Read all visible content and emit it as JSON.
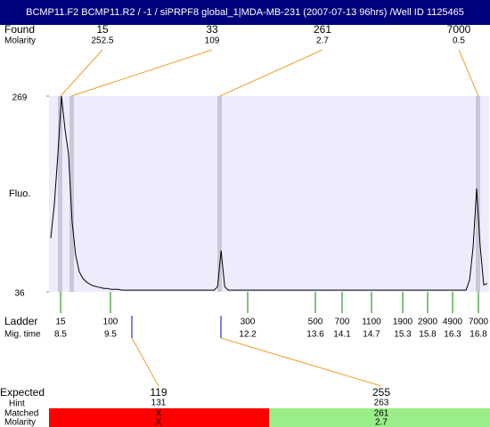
{
  "header": {
    "title": "BCMP11.F2  BCMP11.R2 / -1  / siPRPF8 global_1|MDA-MB-231 (2007-07-13 96hrs) /Well ID 1125465"
  },
  "found": {
    "label": "Found",
    "molarity_label": "Molarity",
    "peaks": [
      {
        "size": 15,
        "molarity": 252.5
      },
      {
        "size": 33,
        "molarity": 109
      },
      {
        "size": 261,
        "molarity": 2.7
      },
      {
        "size": 7000,
        "molarity": 0.5
      }
    ]
  },
  "plot": {
    "y_label": "Fluo.",
    "ylim": [
      36,
      269
    ],
    "yticks": [
      36,
      269
    ],
    "trace": [
      100,
      140,
      200,
      269,
      230,
      200,
      120,
      80,
      60,
      52,
      48,
      45,
      43,
      42,
      41,
      40,
      40,
      39,
      39,
      39,
      38,
      38,
      38,
      38,
      38,
      38,
      38,
      38,
      38,
      38,
      38,
      38,
      38,
      38,
      38,
      38,
      38,
      38,
      38,
      38,
      38,
      38,
      38,
      38,
      38,
      38,
      38,
      42,
      85,
      42,
      38,
      38,
      38,
      38,
      38,
      38,
      38,
      38,
      38,
      38,
      38,
      38,
      38,
      38,
      38,
      38,
      38,
      38,
      38,
      38,
      38,
      38,
      38,
      38,
      38,
      38,
      38,
      38,
      38,
      38,
      38,
      38,
      38,
      38,
      38,
      38,
      38,
      38,
      38,
      38,
      38,
      38,
      38,
      38,
      38,
      38,
      38,
      38,
      38,
      38,
      38,
      38,
      38,
      38,
      38,
      38,
      38,
      38,
      38,
      38,
      38,
      38,
      38,
      38,
      38,
      38,
      38,
      38,
      50,
      90,
      159,
      90,
      44,
      46
    ]
  },
  "ladder": {
    "label": "Ladder",
    "time_label": "Mig. time",
    "sizes": [
      15,
      100,
      300,
      500,
      700,
      1100,
      1900,
      2900,
      4900,
      7000
    ],
    "times": [
      8.5,
      9.5,
      12.2,
      13.6,
      14.1,
      14.7,
      15.3,
      15.8,
      16.3,
      16.8
    ]
  },
  "expected": {
    "label": "Expected",
    "hint_label": "Hint",
    "matched_label": "Matched",
    "molarity_label": "Molarity",
    "items": [
      {
        "expected": 119,
        "hint": 131,
        "matched": "X",
        "molarity": "X"
      },
      {
        "expected": 255,
        "hint": 263,
        "matched": 261,
        "molarity": 2.7
      }
    ]
  }
}
